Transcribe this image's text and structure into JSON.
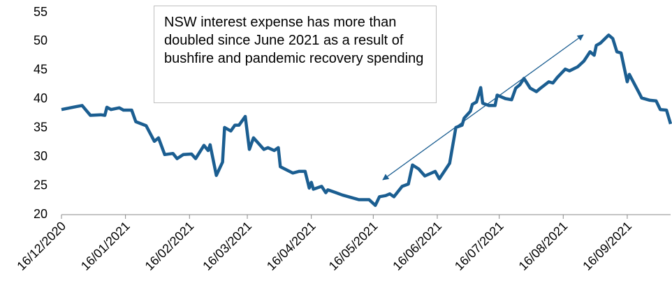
{
  "chart_data": {
    "type": "line",
    "annotation": "NSW interest expense has more than doubled since June 2021 as a result of bushfire and pandemic recovery spending",
    "x": [
      "2020-12-16",
      "2020-12-23",
      "2020-12-26",
      "2020-12-30",
      "2021-01-04",
      "2021-01-06",
      "2021-01-07",
      "2021-01-09",
      "2021-01-13",
      "2021-01-15",
      "2021-01-19",
      "2021-01-21",
      "2021-01-26",
      "2021-01-30",
      "2021-02-01",
      "2021-02-04",
      "2021-02-08",
      "2021-02-10",
      "2021-02-13",
      "2021-02-17",
      "2021-02-19",
      "2021-02-23",
      "2021-02-25",
      "2021-02-26",
      "2021-03-01",
      "2021-03-04",
      "2021-03-05",
      "2021-03-08",
      "2021-03-10",
      "2021-03-12",
      "2021-03-15",
      "2021-03-17",
      "2021-03-19",
      "2021-03-21",
      "2021-03-24",
      "2021-03-26",
      "2021-03-29",
      "2021-03-31",
      "2021-04-01",
      "2021-04-07",
      "2021-04-10",
      "2021-04-13",
      "2021-04-15",
      "2021-04-16",
      "2021-04-17",
      "2021-04-21",
      "2021-04-23",
      "2021-04-24",
      "2021-04-28",
      "2021-05-01",
      "2021-05-04",
      "2021-05-09",
      "2021-05-14",
      "2021-05-17",
      "2021-05-19",
      "2021-05-22",
      "2021-05-24",
      "2021-05-26",
      "2021-05-30",
      "2021-06-02",
      "2021-06-04",
      "2021-06-07",
      "2021-06-10",
      "2021-06-15",
      "2021-06-17",
      "2021-06-22",
      "2021-06-25",
      "2021-06-28",
      "2021-06-29",
      "2021-07-02",
      "2021-07-03",
      "2021-07-05",
      "2021-07-07",
      "2021-07-08",
      "2021-07-11",
      "2021-07-14",
      "2021-07-15",
      "2021-07-19",
      "2021-07-22",
      "2021-07-24",
      "2021-07-26",
      "2021-07-28",
      "2021-07-31",
      "2021-08-03",
      "2021-08-05",
      "2021-08-09",
      "2021-08-11",
      "2021-08-13",
      "2021-08-17",
      "2021-08-19",
      "2021-08-23",
      "2021-08-26",
      "2021-08-29",
      "2021-08-31",
      "2021-09-01",
      "2021-09-03",
      "2021-09-07",
      "2021-09-09",
      "2021-09-11",
      "2021-09-13",
      "2021-09-16",
      "2021-09-17",
      "2021-09-22",
      "2021-09-23",
      "2021-09-27",
      "2021-09-30",
      "2021-10-02",
      "2021-10-05",
      "2021-10-07"
    ],
    "series": [
      {
        "color": "#1b5e91",
        "values": [
          38.2,
          38.7,
          38.9,
          37.2,
          37.3,
          37.2,
          38.6,
          38.2,
          38.5,
          38.1,
          38.1,
          36.1,
          35.4,
          32.7,
          33.3,
          30.4,
          30.6,
          29.7,
          30.4,
          30.5,
          29.7,
          32.0,
          31.1,
          32.1,
          26.8,
          29.1,
          35.1,
          34.5,
          35.5,
          35.5,
          37.0,
          31.3,
          33.3,
          32.5,
          31.3,
          31.6,
          31.1,
          31.6,
          28.3,
          27.2,
          27.5,
          27.5,
          24.6,
          25.6,
          24.4,
          24.9,
          23.8,
          24.3,
          23.8,
          23.4,
          23.1,
          22.6,
          22.6,
          21.6,
          23.1,
          23.3,
          23.6,
          23.1,
          24.9,
          25.3,
          28.6,
          27.9,
          26.7,
          27.5,
          26.2,
          28.9,
          35.1,
          35.5,
          36.7,
          37.9,
          39.1,
          39.5,
          42.0,
          39.3,
          38.9,
          38.9,
          40.7,
          40.1,
          39.9,
          41.9,
          42.5,
          43.6,
          41.9,
          41.3,
          41.9,
          43.0,
          42.8,
          43.7,
          45.2,
          44.9,
          45.6,
          46.6,
          48.2,
          47.6,
          49.3,
          49.7,
          51.1,
          50.5,
          48.2,
          48.0,
          43.0,
          44.3,
          40.9,
          40.2,
          39.8,
          39.7,
          38.2,
          38.1,
          35.7
        ]
      }
    ],
    "xlim": [
      "2020-12-16",
      "2021-10-07"
    ],
    "xticks": [
      {
        "value": "2020-12-16",
        "label": "16/12/2020"
      },
      {
        "value": "2021-01-16",
        "label": "16/01/2021"
      },
      {
        "value": "2021-02-16",
        "label": "16/02/2021"
      },
      {
        "value": "2021-03-16",
        "label": "16/03/2021"
      },
      {
        "value": "2021-04-16",
        "label": "16/04/2021"
      },
      {
        "value": "2021-05-16",
        "label": "16/05/2021"
      },
      {
        "value": "2021-06-16",
        "label": "16/06/2021"
      },
      {
        "value": "2021-07-16",
        "label": "16/07/2021"
      },
      {
        "value": "2021-08-16",
        "label": "16/08/2021"
      },
      {
        "value": "2021-09-16",
        "label": "16/09/2021"
      }
    ],
    "ylim": [
      20,
      55
    ],
    "yticks": [
      20,
      25,
      30,
      35,
      40,
      45,
      50,
      55
    ],
    "grid": false
  }
}
